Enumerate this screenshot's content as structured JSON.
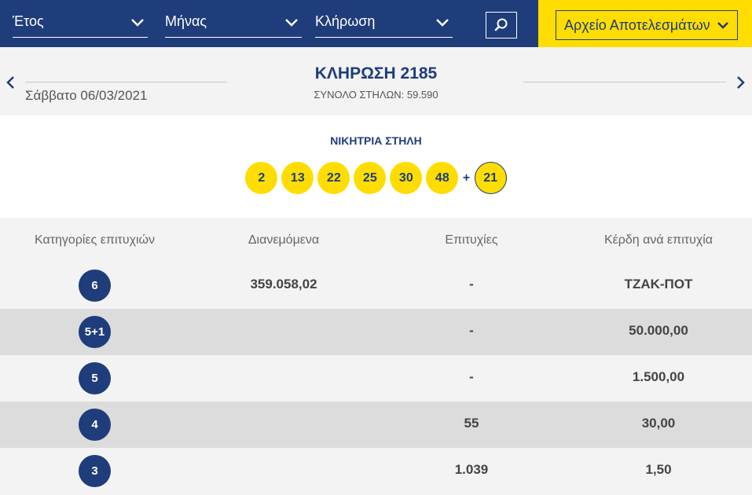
{
  "filters": {
    "year_label": "Έτος",
    "month_label": "Μήνας",
    "draw_label": "Κλήρωση",
    "archive_label": "Αρχείο Αποτελεσμάτων"
  },
  "draw": {
    "date": "Σάββατο 06/03/2021",
    "title": "ΚΛΗΡΩΣΗ 2185",
    "total_columns": "ΣΥΝΟΛΟ ΣΤΗΛΩΝ: 59.590"
  },
  "winning": {
    "title": "ΝΙΚΗΤΡΙΑ ΣΤΗΛΗ",
    "numbers": [
      "2",
      "13",
      "22",
      "25",
      "30",
      "48"
    ],
    "plus": "+",
    "joker": "21"
  },
  "table": {
    "headers": [
      "Κατηγορίες επιτυχιών",
      "Διανεμόμενα",
      "Επιτυχίες",
      "Κέρδη ανά επιτυχία"
    ],
    "rows": [
      {
        "category": "6",
        "distributed": "359.058,02",
        "winners": "-",
        "prize": "ΤΖΑΚ-ΠΟΤ"
      },
      {
        "category": "5+1",
        "distributed": "",
        "winners": "-",
        "prize": "50.000,00"
      },
      {
        "category": "5",
        "distributed": "",
        "winners": "-",
        "prize": "1.500,00"
      },
      {
        "category": "4",
        "distributed": "",
        "winners": "55",
        "prize": "30,00"
      },
      {
        "category": "3",
        "distributed": "",
        "winners": "1.039",
        "prize": "1,50"
      }
    ]
  },
  "colors": {
    "navy": "#1f3d7a",
    "yellow": "#ffdd00",
    "row_light": "#f3f3f3",
    "row_dark": "#dcdcdc"
  },
  "icons": [
    "chevron-down-icon",
    "search-icon",
    "chevron-left-icon",
    "chevron-right-icon"
  ]
}
